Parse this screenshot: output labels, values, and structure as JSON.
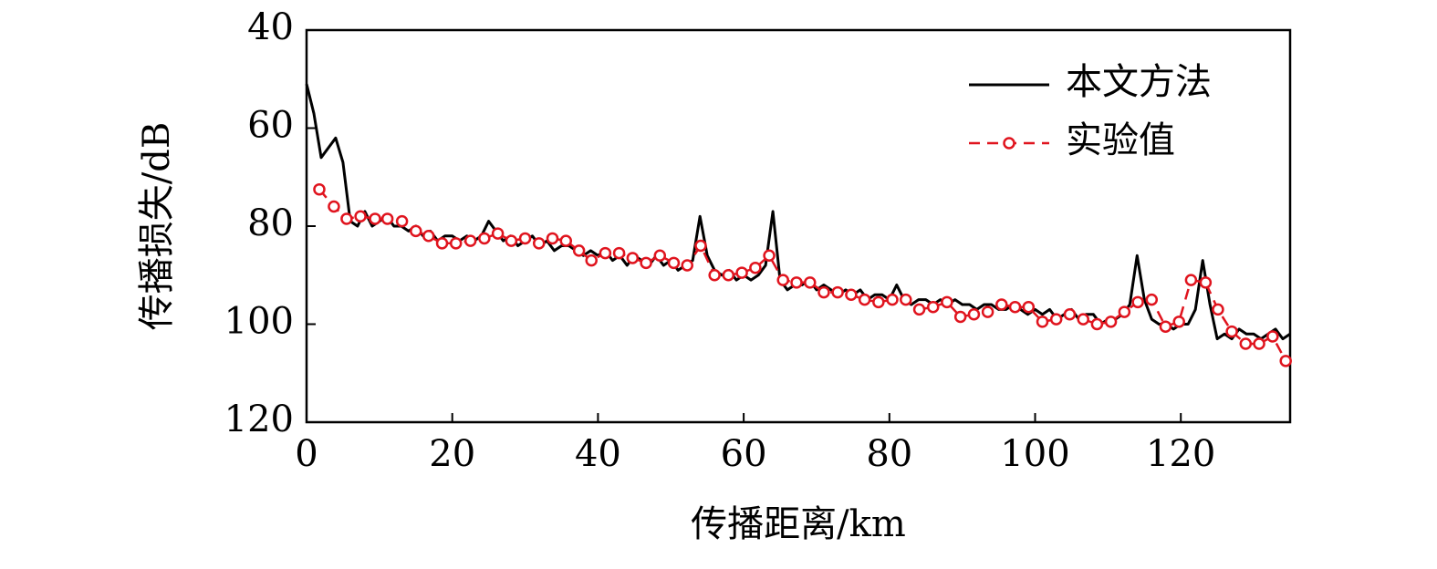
{
  "chart_data": {
    "type": "line",
    "xlabel": "传播距离/km",
    "ylabel": "传播损失/dB",
    "xlim": [
      0,
      135
    ],
    "xticks": [
      0,
      20,
      40,
      60,
      80,
      100,
      120
    ],
    "ylim": [
      40,
      120
    ],
    "yticks": [
      40,
      60,
      80,
      100,
      120
    ],
    "y_inverted": true,
    "legend": "upper right",
    "series": [
      {
        "name": "本文方法",
        "color": "#000000",
        "style": "solid",
        "marker": "none",
        "x": [
          0,
          1,
          2,
          3,
          4,
          5,
          6,
          7,
          8,
          9,
          10,
          11,
          12,
          13,
          14,
          15,
          16,
          17,
          18,
          19,
          20,
          21,
          22,
          23,
          24,
          25,
          26,
          27,
          28,
          29,
          30,
          31,
          32,
          33,
          34,
          35,
          36,
          37,
          38,
          39,
          40,
          41,
          42,
          43,
          44,
          45,
          46,
          47,
          48,
          49,
          50,
          51,
          52,
          53,
          54,
          55,
          56,
          57,
          58,
          59,
          60,
          61,
          62,
          63,
          64,
          65,
          66,
          67,
          68,
          69,
          70,
          71,
          72,
          73,
          74,
          75,
          76,
          77,
          78,
          79,
          80,
          81,
          82,
          83,
          84,
          85,
          86,
          87,
          88,
          89,
          90,
          91,
          92,
          93,
          94,
          95,
          96,
          97,
          98,
          99,
          100,
          101,
          102,
          103,
          104,
          105,
          106,
          107,
          108,
          109,
          110,
          111,
          112,
          113,
          114,
          115,
          116,
          117,
          118,
          119,
          120,
          121,
          122,
          123,
          124,
          125,
          126,
          127,
          128,
          129,
          130,
          131,
          132,
          133,
          134,
          135
        ],
        "values": [
          51,
          57,
          66,
          64,
          62,
          67,
          79,
          80,
          77,
          80,
          79,
          78,
          80,
          80,
          81,
          80,
          82,
          81,
          83,
          82,
          82,
          83,
          82,
          83,
          82,
          79,
          81,
          83,
          82,
          84,
          83,
          82,
          84,
          83,
          85,
          84,
          84,
          85,
          86,
          85,
          86,
          85,
          87,
          86,
          88,
          86,
          87,
          88,
          86,
          88,
          87,
          89,
          88,
          87,
          78,
          86,
          89,
          90,
          89,
          91,
          90,
          91,
          90,
          88,
          77,
          91,
          93,
          92,
          92,
          91,
          93,
          92,
          93,
          94,
          93,
          94,
          93,
          95,
          94,
          94,
          95,
          92,
          95,
          96,
          95,
          95,
          96,
          95,
          96,
          95,
          96,
          96,
          97,
          96,
          96,
          97,
          97,
          96,
          97,
          98,
          97,
          98,
          97,
          99,
          98,
          97,
          99,
          98,
          98,
          100,
          99,
          99,
          98,
          96,
          86,
          95,
          99,
          100,
          100,
          101,
          100,
          100,
          97,
          87,
          96,
          103,
          102,
          103,
          101,
          102,
          102,
          103,
          102,
          101,
          103,
          102
        ]
      },
      {
        "name": "实验值",
        "color": "#e0141e",
        "style": "dashed",
        "marker": "circle",
        "x": [
          1.75,
          3.75,
          5.5,
          7.4,
          9.4,
          11.1,
          13.1,
          15,
          16.75,
          18.6,
          20.5,
          22.5,
          24.4,
          26.25,
          28.1,
          30,
          31.9,
          33.75,
          35.6,
          37.4,
          39.1,
          41,
          42.9,
          44.75,
          46.6,
          48.5,
          50.4,
          52.25,
          54.1,
          56,
          57.9,
          59.75,
          61.6,
          63.5,
          65.4,
          67.25,
          69.1,
          71,
          72.9,
          74.75,
          76.6,
          78.5,
          80.4,
          82.25,
          84.1,
          86,
          87.9,
          89.75,
          91.6,
          93.5,
          95.4,
          97.25,
          99.1,
          101,
          102.9,
          104.75,
          106.6,
          108.5,
          110.4,
          112.25,
          114.1,
          116,
          117.9,
          119.75,
          121.4,
          123.4,
          125.1,
          127,
          128.9,
          130.75,
          132.6,
          134.4
        ],
        "values": [
          72.5,
          76,
          78.5,
          78,
          78.5,
          78.5,
          79,
          81,
          82,
          83.5,
          83.5,
          83,
          82.5,
          81.5,
          83,
          82.5,
          83.5,
          82.5,
          83,
          85,
          87,
          85.5,
          85.5,
          86.5,
          87.5,
          86,
          87.5,
          88,
          84,
          90,
          90,
          89.5,
          88.5,
          86,
          91,
          91.5,
          91.5,
          93.5,
          93.5,
          94,
          95,
          95.5,
          95,
          95,
          97,
          96.5,
          95.5,
          98.5,
          98,
          97.5,
          96,
          96.5,
          96.5,
          99.5,
          99,
          98,
          99,
          100,
          99.5,
          97.5,
          95.5,
          95,
          100.5,
          99.5,
          91,
          91.5,
          97,
          101.5,
          104,
          104,
          102.5,
          107.5
        ]
      }
    ]
  }
}
